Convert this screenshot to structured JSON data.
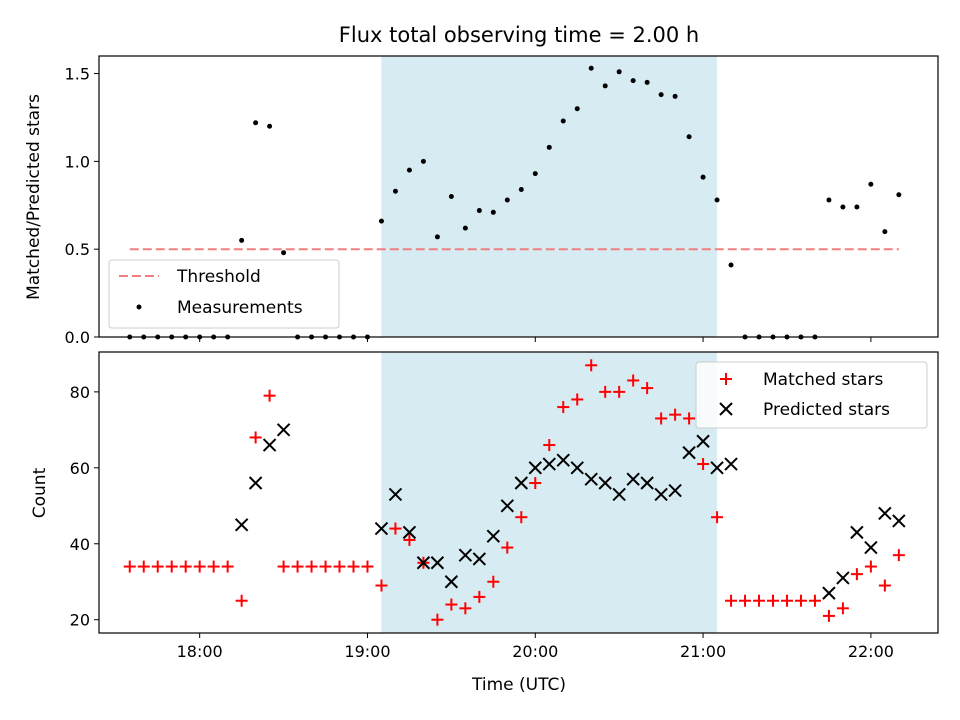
{
  "chart_data": [
    {
      "type": "scatter",
      "title": "Flux total observing time = 2.00 h",
      "ylabel": "Matched/Predicted stars",
      "xlabel": "",
      "xlim": [
        "17:24",
        "22:24"
      ],
      "ylim": [
        0,
        1.6
      ],
      "yticks": [
        0.0,
        0.5,
        1.0,
        1.5
      ],
      "ytick_labels": [
        "0.0",
        "0.5",
        "1.0",
        "1.5"
      ],
      "shaded_span": {
        "x0": "19:05",
        "x1": "21:05",
        "color": "#add8e6"
      },
      "legend": {
        "placement": "lower-left",
        "entries": [
          "Threshold",
          "Measurements"
        ]
      },
      "threshold": {
        "name": "Threshold",
        "y": 0.5,
        "x0": "17:35",
        "x1": "22:10",
        "color": "#f08080"
      },
      "series": [
        {
          "name": "Measurements",
          "color": "#000000",
          "points": [
            [
              "17:35",
              0
            ],
            [
              "17:40",
              0
            ],
            [
              "17:45",
              0
            ],
            [
              "17:50",
              0
            ],
            [
              "17:55",
              0
            ],
            [
              "18:00",
              0
            ],
            [
              "18:05",
              0
            ],
            [
              "18:10",
              0
            ],
            [
              "18:15",
              0.55
            ],
            [
              "18:20",
              1.22
            ],
            [
              "18:25",
              1.2
            ],
            [
              "18:30",
              0.48
            ],
            [
              "18:35",
              0
            ],
            [
              "18:40",
              0
            ],
            [
              "18:45",
              0
            ],
            [
              "18:50",
              0
            ],
            [
              "18:55",
              0
            ],
            [
              "19:00",
              0
            ],
            [
              "19:05",
              0.66
            ],
            [
              "19:10",
              0.83
            ],
            [
              "19:15",
              0.95
            ],
            [
              "19:20",
              1.0
            ],
            [
              "19:25",
              0.57
            ],
            [
              "19:30",
              0.8
            ],
            [
              "19:35",
              0.62
            ],
            [
              "19:40",
              0.72
            ],
            [
              "19:45",
              0.71
            ],
            [
              "19:50",
              0.78
            ],
            [
              "19:55",
              0.84
            ],
            [
              "20:00",
              0.93
            ],
            [
              "20:05",
              1.08
            ],
            [
              "20:10",
              1.23
            ],
            [
              "20:15",
              1.3
            ],
            [
              "20:20",
              1.53
            ],
            [
              "20:25",
              1.43
            ],
            [
              "20:30",
              1.51
            ],
            [
              "20:35",
              1.46
            ],
            [
              "20:40",
              1.45
            ],
            [
              "20:45",
              1.38
            ],
            [
              "20:50",
              1.37
            ],
            [
              "20:55",
              1.14
            ],
            [
              "21:00",
              0.91
            ],
            [
              "21:05",
              0.78
            ],
            [
              "21:10",
              0.41
            ],
            [
              "21:15",
              0
            ],
            [
              "21:20",
              0
            ],
            [
              "21:25",
              0
            ],
            [
              "21:30",
              0
            ],
            [
              "21:35",
              0
            ],
            [
              "21:40",
              0
            ],
            [
              "21:45",
              0.78
            ],
            [
              "21:50",
              0.74
            ],
            [
              "21:55",
              0.74
            ],
            [
              "22:00",
              0.87
            ],
            [
              "22:05",
              0.6
            ],
            [
              "22:10",
              0.81
            ]
          ]
        }
      ]
    },
    {
      "type": "scatter",
      "title": "",
      "ylabel": "Count",
      "xlabel": "Time (UTC)",
      "xlim": [
        "17:24",
        "22:24"
      ],
      "ylim": [
        16.5,
        90.5
      ],
      "yticks": [
        20,
        40,
        60,
        80
      ],
      "ytick_labels": [
        "20",
        "40",
        "60",
        "80"
      ],
      "xticks": [
        "18:00",
        "19:00",
        "20:00",
        "21:00",
        "22:00"
      ],
      "xtick_labels": [
        "18:00",
        "19:00",
        "20:00",
        "21:00",
        "22:00"
      ],
      "shaded_span": {
        "x0": "19:05",
        "x1": "21:05",
        "color": "#add8e6"
      },
      "legend": {
        "placement": "upper-right",
        "entries": [
          "Matched stars",
          "Predicted stars"
        ]
      },
      "series": [
        {
          "name": "Matched stars",
          "marker": "plus",
          "color": "#ff0000",
          "points": [
            [
              "17:35",
              34
            ],
            [
              "17:40",
              34
            ],
            [
              "17:45",
              34
            ],
            [
              "17:50",
              34
            ],
            [
              "17:55",
              34
            ],
            [
              "18:00",
              34
            ],
            [
              "18:05",
              34
            ],
            [
              "18:10",
              34
            ],
            [
              "18:15",
              25
            ],
            [
              "18:20",
              68
            ],
            [
              "18:25",
              79
            ],
            [
              "18:30",
              34
            ],
            [
              "18:35",
              34
            ],
            [
              "18:40",
              34
            ],
            [
              "18:45",
              34
            ],
            [
              "18:50",
              34
            ],
            [
              "18:55",
              34
            ],
            [
              "19:00",
              34
            ],
            [
              "19:05",
              29
            ],
            [
              "19:10",
              44
            ],
            [
              "19:15",
              41
            ],
            [
              "19:20",
              35
            ],
            [
              "19:25",
              20
            ],
            [
              "19:30",
              24
            ],
            [
              "19:35",
              23
            ],
            [
              "19:40",
              26
            ],
            [
              "19:45",
              30
            ],
            [
              "19:50",
              39
            ],
            [
              "19:55",
              47
            ],
            [
              "20:00",
              56
            ],
            [
              "20:05",
              66
            ],
            [
              "20:10",
              76
            ],
            [
              "20:15",
              78
            ],
            [
              "20:20",
              87
            ],
            [
              "20:25",
              80
            ],
            [
              "20:30",
              80
            ],
            [
              "20:35",
              83
            ],
            [
              "20:40",
              81
            ],
            [
              "20:45",
              73
            ],
            [
              "20:50",
              74
            ],
            [
              "20:55",
              73
            ],
            [
              "21:00",
              61
            ],
            [
              "21:05",
              47
            ],
            [
              "21:10",
              25
            ],
            [
              "21:15",
              25
            ],
            [
              "21:20",
              25
            ],
            [
              "21:25",
              25
            ],
            [
              "21:30",
              25
            ],
            [
              "21:35",
              25
            ],
            [
              "21:40",
              25
            ],
            [
              "21:45",
              21
            ],
            [
              "21:50",
              23
            ],
            [
              "21:55",
              32
            ],
            [
              "22:00",
              34
            ],
            [
              "22:05",
              29
            ],
            [
              "22:10",
              37
            ]
          ]
        },
        {
          "name": "Predicted stars",
          "marker": "x",
          "color": "#000000",
          "points": [
            [
              "18:15",
              45
            ],
            [
              "18:20",
              56
            ],
            [
              "18:25",
              66
            ],
            [
              "18:30",
              70
            ],
            [
              "19:05",
              44
            ],
            [
              "19:10",
              53
            ],
            [
              "19:15",
              43
            ],
            [
              "19:20",
              35
            ],
            [
              "19:25",
              35
            ],
            [
              "19:30",
              30
            ],
            [
              "19:35",
              37
            ],
            [
              "19:40",
              36
            ],
            [
              "19:45",
              42
            ],
            [
              "19:50",
              50
            ],
            [
              "19:55",
              56
            ],
            [
              "20:00",
              60
            ],
            [
              "20:05",
              61
            ],
            [
              "20:10",
              62
            ],
            [
              "20:15",
              60
            ],
            [
              "20:20",
              57
            ],
            [
              "20:25",
              56
            ],
            [
              "20:30",
              53
            ],
            [
              "20:35",
              57
            ],
            [
              "20:40",
              56
            ],
            [
              "20:45",
              53
            ],
            [
              "20:50",
              54
            ],
            [
              "20:55",
              64
            ],
            [
              "21:00",
              67
            ],
            [
              "21:05",
              60
            ],
            [
              "21:10",
              61
            ],
            [
              "21:45",
              27
            ],
            [
              "21:50",
              31
            ],
            [
              "21:55",
              43
            ],
            [
              "22:00",
              39
            ],
            [
              "22:05",
              48
            ],
            [
              "22:10",
              46
            ]
          ]
        }
      ]
    }
  ]
}
